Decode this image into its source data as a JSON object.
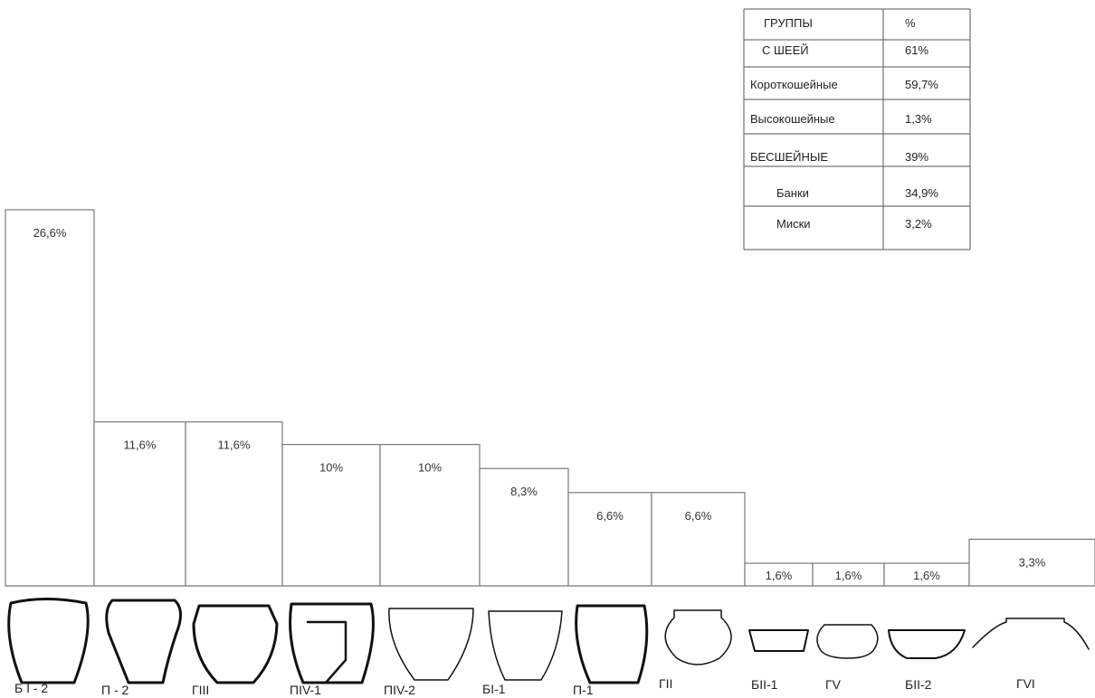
{
  "chart_data": {
    "type": "bar",
    "categories": [
      "Б I - 2",
      "П - 2",
      "ГIII",
      "ПIV-1",
      "ПIV-2",
      "БI-1",
      "П-1",
      "ГII",
      "БII-1",
      "ГV",
      "БII-2",
      "ГVI"
    ],
    "values": [
      26.6,
      11.6,
      11.6,
      10,
      10,
      8.3,
      6.6,
      6.6,
      1.6,
      1.6,
      1.6,
      3.3
    ],
    "value_labels": [
      "26,6%",
      "11,6%",
      "11,6%",
      "10%",
      "10%",
      "8,3%",
      "6,6%",
      "6,6%",
      "1,6%",
      "1,6%",
      "1,6%",
      "3,3%"
    ],
    "title": "",
    "xlabel": "",
    "ylabel": "",
    "grid": false,
    "legend": "none"
  },
  "table": {
    "header": [
      "ГРУППЫ",
      "%"
    ],
    "rows": [
      [
        "С ШЕЕЙ",
        "61%"
      ],
      [
        "Короткошейные",
        "59,7%"
      ],
      [
        "Высокошейные",
        "1,3%"
      ],
      [
        "БЕСШЕЙНЫЕ",
        "39%"
      ],
      [
        "Банки",
        "34,9%"
      ],
      [
        "Миски",
        "3,2%"
      ]
    ]
  },
  "colors": {
    "bar_fill": "#ffffff",
    "bar_stroke": "#7a7a7a",
    "pot_stroke": "#111111",
    "text": "#333333"
  }
}
